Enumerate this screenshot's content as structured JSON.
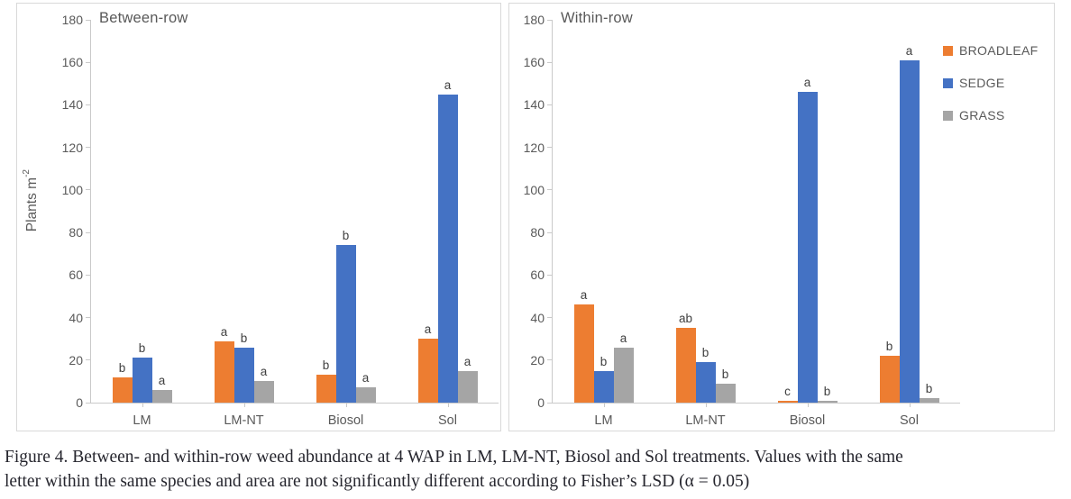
{
  "figure": {
    "caption_line1": "Figure 4. Between- and within-row weed abundance at 4 WAP in LM, LM-NT, Biosol and Sol treatments. Values with the same",
    "caption_line2": "letter within the same species and area are not significantly different according to Fisher’s LSD (α = 0.05)"
  },
  "colors": {
    "broadleaf": "#ED7D31",
    "sedge": "#4472C4",
    "grass": "#A5A5A5",
    "axis_line": "#C9C9C9",
    "panel_border": "#D9D9D9",
    "tick_label": "#595959",
    "letter": "#3F3F3F",
    "caption_text": "#26262E"
  },
  "legend": {
    "position": "top-right",
    "items": [
      {
        "label": "BROADLEAF",
        "color": "#ED7D31"
      },
      {
        "label": "SEDGE",
        "color": "#4472C4"
      },
      {
        "label": "GRASS",
        "color": "#A5A5A5"
      }
    ]
  },
  "chart_data": [
    {
      "type": "bar",
      "title": "Between-row",
      "ylabel": "Plants m-2",
      "ylabel_base": "Plants m",
      "ylabel_sup": "-2",
      "ylim": [
        0,
        180
      ],
      "ytick_step": 20,
      "grid": false,
      "categories": [
        "LM",
        "LM-NT",
        "Biosol",
        "Sol"
      ],
      "series": [
        {
          "name": "BROADLEAF",
          "color": "#ED7D31",
          "values": [
            12,
            29,
            13,
            30
          ],
          "letters": [
            "b",
            "a",
            "b",
            "a"
          ]
        },
        {
          "name": "SEDGE",
          "color": "#4472C4",
          "values": [
            21,
            26,
            74,
            145
          ],
          "letters": [
            "b",
            "b",
            "b",
            "a"
          ]
        },
        {
          "name": "GRASS",
          "color": "#A5A5A5",
          "values": [
            6,
            10,
            7,
            15
          ],
          "letters": [
            "a",
            "a",
            "a",
            "a"
          ]
        }
      ]
    },
    {
      "type": "bar",
      "title": "Within-row",
      "ylabel": "",
      "ylim": [
        0,
        180
      ],
      "ytick_step": 20,
      "grid": false,
      "categories": [
        "LM",
        "LM-NT",
        "Biosol",
        "Sol"
      ],
      "series": [
        {
          "name": "BROADLEAF",
          "color": "#ED7D31",
          "values": [
            46,
            35,
            1,
            22
          ],
          "letters": [
            "a",
            "ab",
            "c",
            "b"
          ]
        },
        {
          "name": "SEDGE",
          "color": "#4472C4",
          "values": [
            15,
            19,
            146,
            161
          ],
          "letters": [
            "b",
            "b",
            "a",
            "a"
          ]
        },
        {
          "name": "GRASS",
          "color": "#A5A5A5",
          "values": [
            26,
            9,
            1,
            2
          ],
          "letters": [
            "a",
            "b",
            "b",
            "b"
          ]
        }
      ]
    }
  ]
}
